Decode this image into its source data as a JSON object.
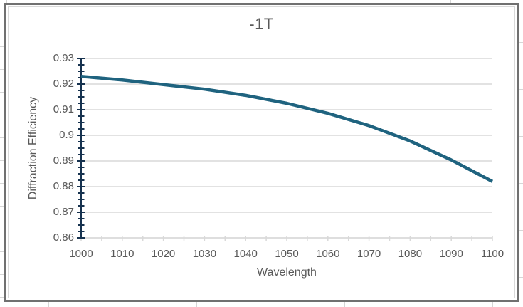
{
  "chart_data": {
    "type": "line",
    "title": "-1T",
    "xlabel": "Wavelength",
    "ylabel": "Diffraction Efficiency",
    "x": [
      1000,
      1010,
      1020,
      1030,
      1040,
      1050,
      1060,
      1070,
      1080,
      1090,
      1100
    ],
    "series": [
      {
        "name": "-1T",
        "values": [
          0.923,
          0.9216,
          0.9198,
          0.918,
          0.9156,
          0.9125,
          0.9086,
          0.9038,
          0.8978,
          0.8904,
          0.882
        ]
      }
    ],
    "xlim": [
      1000,
      1100
    ],
    "ylim": [
      0.86,
      0.93
    ],
    "xticks": [
      1000,
      1010,
      1020,
      1030,
      1040,
      1050,
      1060,
      1070,
      1080,
      1090,
      1100
    ],
    "yticks": [
      0.86,
      0.87,
      0.88,
      0.89,
      0.9,
      0.91,
      0.92,
      0.93
    ],
    "ytick_labels": [
      "0.86",
      "0.87",
      "0.88",
      "0.89",
      "0.9",
      "0.91",
      "0.92",
      "0.93"
    ],
    "x_minor_step": 5,
    "y_minor_step": 0.0025,
    "grid": "horizontal",
    "legend": "none",
    "colors": {
      "line": "#1f637f",
      "y_axis": "#16324f",
      "x_axis": "#d9d9d9",
      "gridline": "#d9d9d9",
      "text": "#595959"
    }
  }
}
